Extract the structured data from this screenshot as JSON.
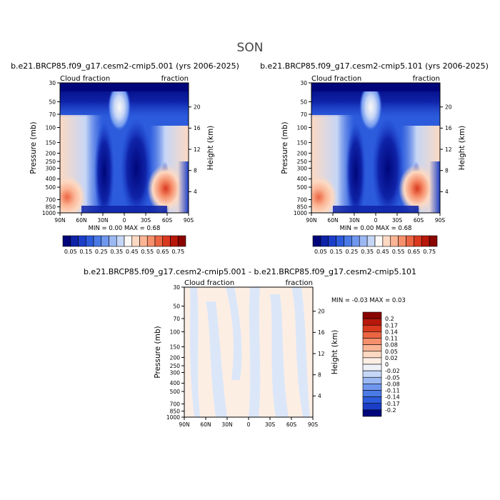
{
  "figure": {
    "title": "SON"
  },
  "chart_data": [
    {
      "type": "heatmap",
      "title": "b.e21.BRCP85.f09_g17.cesm2-cmip5.001 (yrs 2006-2025)",
      "left_label": "Cloud fraction",
      "right_label": "fraction",
      "ylabel": "Pressure (mb)",
      "ylabel_right": "Height (km)",
      "x_ticks": [
        "90N",
        "60N",
        "30N",
        "0",
        "30S",
        "60S",
        "90S"
      ],
      "y_ticks": [
        "30",
        "50",
        "70",
        "100",
        "150",
        "200",
        "250",
        "300",
        "400",
        "500",
        "700",
        "850",
        "1000"
      ],
      "y_right_ticks": [
        "20",
        "16",
        "12",
        "8",
        "4"
      ],
      "stats": {
        "min_label": "MIN =",
        "min": "0.00",
        "max_label": "MAX =",
        "max": "0.68"
      },
      "legend": {
        "orientation": "horizontal",
        "labels": [
          "0.05",
          "0.15",
          "0.25",
          "0.35",
          "0.45",
          "0.55",
          "0.65",
          "0.75"
        ],
        "colors": [
          "#00067a",
          "#0f23a8",
          "#1b3ec8",
          "#2c5bdc",
          "#4a7ae6",
          "#6f97ee",
          "#9bb8f3",
          "#c6d6f6",
          "#fbf8f6",
          "#fcd9c3",
          "#fbb595",
          "#f68f6b",
          "#eb6543",
          "#d9391f",
          "#b8170b",
          "#8a0500"
        ]
      }
    },
    {
      "type": "heatmap",
      "title": "b.e21.BRCP85.f09_g17.cesm2-cmip5.101 (yrs 2006-2025)",
      "left_label": "Cloud fraction",
      "right_label": "fraction",
      "ylabel": "Pressure (mb)",
      "ylabel_right": "Height (km)",
      "x_ticks": [
        "90N",
        "60N",
        "30N",
        "0",
        "30S",
        "60S",
        "90S"
      ],
      "y_ticks": [
        "30",
        "50",
        "70",
        "100",
        "150",
        "200",
        "250",
        "300",
        "400",
        "500",
        "700",
        "850",
        "1000"
      ],
      "y_right_ticks": [
        "20",
        "16",
        "12",
        "8",
        "4"
      ],
      "stats": {
        "min_label": "MIN =",
        "min": "0.00",
        "max_label": "MAX =",
        "max": "0.68"
      },
      "legend": {
        "orientation": "horizontal",
        "labels": [
          "0.05",
          "0.15",
          "0.25",
          "0.35",
          "0.45",
          "0.55",
          "0.65",
          "0.75"
        ],
        "colors": [
          "#00067a",
          "#0f23a8",
          "#1b3ec8",
          "#2c5bdc",
          "#4a7ae6",
          "#6f97ee",
          "#9bb8f3",
          "#c6d6f6",
          "#fbf8f6",
          "#fcd9c3",
          "#fbb595",
          "#f68f6b",
          "#eb6543",
          "#d9391f",
          "#b8170b",
          "#8a0500"
        ]
      }
    },
    {
      "type": "heatmap",
      "title": "b.e21.BRCP85.f09_g17.cesm2-cmip5.001 - b.e21.BRCP85.f09_g17.cesm2-cmip5.101",
      "left_label": "Cloud fraction",
      "right_label": "fraction",
      "ylabel": "Pressure (mb)",
      "ylabel_right": "Height (km)",
      "x_ticks": [
        "90N",
        "60N",
        "30N",
        "0",
        "30S",
        "60S",
        "90S"
      ],
      "y_ticks": [
        "30",
        "50",
        "70",
        "100",
        "150",
        "200",
        "250",
        "300",
        "400",
        "500",
        "700",
        "850",
        "1000"
      ],
      "y_right_ticks": [
        "20",
        "16",
        "12",
        "8",
        "4"
      ],
      "stats": {
        "min_label": "MIN =",
        "min": "-0.03",
        "max_label": "MAX =",
        "max": "0.03"
      },
      "legend": {
        "orientation": "vertical",
        "labels": [
          "0.2",
          "0.17",
          "0.14",
          "0.11",
          "0.08",
          "0.05",
          "0.02",
          "0",
          "-0.02",
          "-0.05",
          "-0.08",
          "-0.11",
          "-0.14",
          "-0.17",
          "-0.2"
        ],
        "colors": [
          "#8a0500",
          "#b8170b",
          "#d9391f",
          "#eb6543",
          "#f68f6b",
          "#fbb595",
          "#fcd9c3",
          "#fdeee4",
          "#eef1f8",
          "#c6d6f6",
          "#9bb8f3",
          "#6f97ee",
          "#4a7ae6",
          "#2c5bdc",
          "#1b3ec8",
          "#00067a"
        ]
      }
    }
  ]
}
